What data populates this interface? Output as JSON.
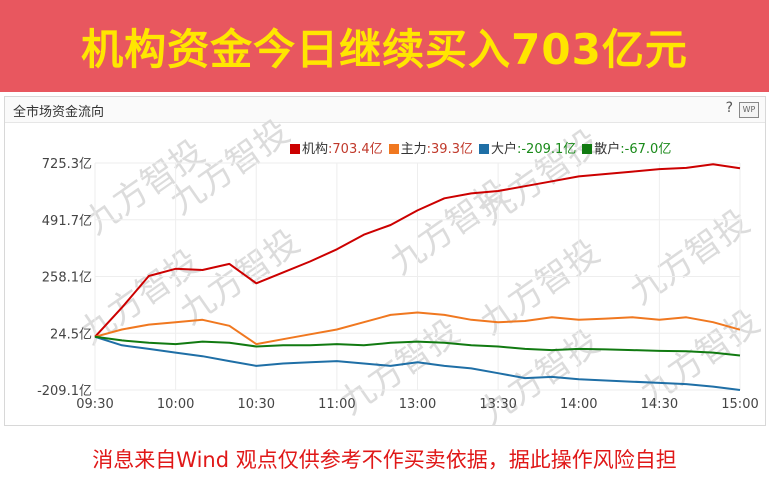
{
  "banner": {
    "title": "机构资金今日继续买入703亿元"
  },
  "panel": {
    "title": "全市场资金流向",
    "help": "?",
    "wp": "WP"
  },
  "watermark": "九方智投",
  "footer": "消息来自Wind 观点仅供参考不作买卖依据，据此操作风险自担",
  "colors": {
    "institution": "#cc0000",
    "main": "#f07820",
    "large": "#1f6fa6",
    "retail": "#117a11",
    "grid": "#eeeeee"
  },
  "chart_data": {
    "type": "line",
    "title": "",
    "xlabel": "",
    "ylabel": "",
    "unit": "亿",
    "x_ticks": [
      "09:30",
      "10:00",
      "10:30",
      "11:00",
      "13:00",
      "13:30",
      "14:00",
      "14:30",
      "15:00"
    ],
    "y_ticks": [
      "725.3亿",
      "491.7亿",
      "258.1亿",
      "24.5亿",
      "-209.1亿"
    ],
    "ylim": [
      -209.1,
      725.3
    ],
    "grid": true,
    "legend_position": "top-right",
    "x_minutes": [
      0,
      10,
      20,
      30,
      40,
      50,
      60,
      70,
      80,
      90,
      100,
      110,
      120,
      130,
      140,
      150,
      160,
      170,
      180,
      190,
      200,
      210,
      220,
      230,
      240
    ],
    "series": [
      {
        "name": "机构",
        "legend_text": ":703.4亿",
        "color_key": "institution",
        "values": [
          10,
          130,
          260,
          290,
          285,
          310,
          230,
          275,
          320,
          370,
          430,
          470,
          530,
          580,
          600,
          610,
          630,
          650,
          670,
          680,
          690,
          700,
          705,
          720,
          703.4
        ]
      },
      {
        "name": "主力",
        "legend_text": ":39.3亿",
        "color_key": "main",
        "values": [
          10,
          40,
          60,
          70,
          80,
          55,
          -20,
          0,
          20,
          40,
          70,
          100,
          110,
          100,
          80,
          70,
          75,
          90,
          80,
          85,
          90,
          80,
          90,
          70,
          39.3
        ]
      },
      {
        "name": "大户",
        "legend_text": ":-209.1亿",
        "color_key": "large",
        "values": [
          10,
          -25,
          -40,
          -55,
          -70,
          -90,
          -110,
          -100,
          -95,
          -90,
          -100,
          -110,
          -95,
          -110,
          -120,
          -140,
          -160,
          -155,
          -165,
          -170,
          -175,
          -180,
          -185,
          -195,
          -209.1
        ]
      },
      {
        "name": "散户",
        "legend_text": ":-67.0亿",
        "color_key": "retail",
        "values": [
          10,
          -5,
          -15,
          -20,
          -10,
          -15,
          -30,
          -25,
          -25,
          -20,
          -25,
          -15,
          -10,
          -15,
          -25,
          -30,
          -40,
          -45,
          -40,
          -42,
          -45,
          -48,
          -50,
          -55,
          -67.0
        ]
      }
    ]
  }
}
